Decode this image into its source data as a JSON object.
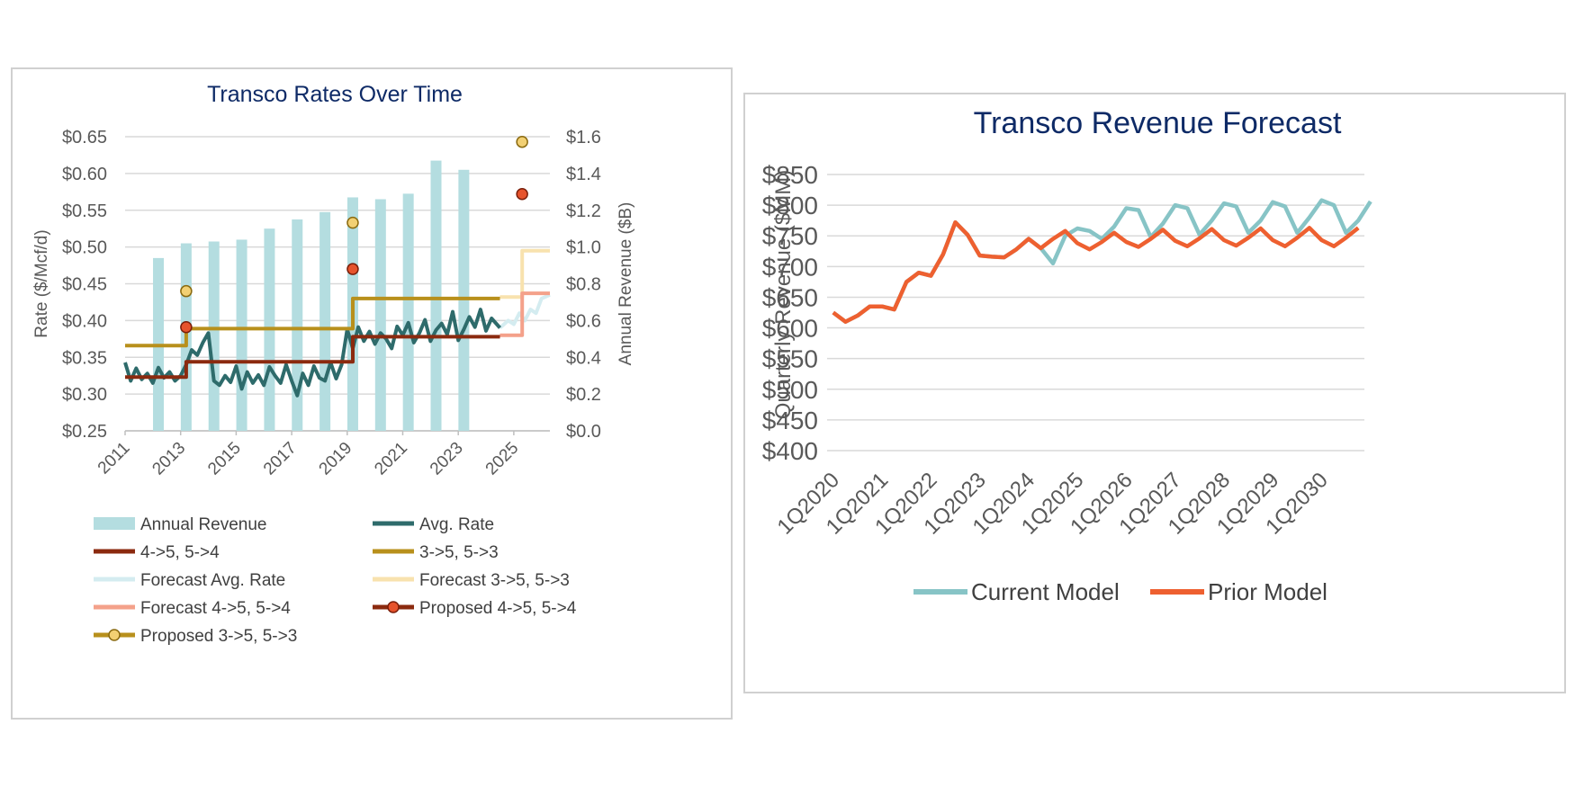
{
  "chart_data": [
    {
      "type": "bar+line",
      "title": "Transco Rates Over Time",
      "ylabel": "Rate ($/Mcf/d)",
      "y2label": "Annual Revenue ($B)",
      "ylim": [
        0.25,
        0.65
      ],
      "y2lim": [
        0,
        1.6
      ],
      "xlim": [
        2011,
        2026.3
      ],
      "yticks": [
        "$0.25",
        "$0.30",
        "$0.35",
        "$0.40",
        "$0.45",
        "$0.50",
        "$0.55",
        "$0.60",
        "$0.65"
      ],
      "y2ticks": [
        "$0.0",
        "$0.2",
        "$0.4",
        "$0.6",
        "$0.8",
        "$1.0",
        "$1.2",
        "$1.4",
        "$1.6"
      ],
      "xticks": [
        "2011",
        "2013",
        "2015",
        "2017",
        "2019",
        "2021",
        "2023",
        "2025"
      ],
      "grid": true,
      "legend_position": "bottom",
      "colors": {
        "annual_revenue": "#b4dde0",
        "avg_rate": "#2e6b6b",
        "r45": "#8b2a0f",
        "r35": "#b8901c",
        "forecast_avg": "#d4ecf0",
        "forecast_35": "#f8e2ae",
        "forecast_45": "#f4a18a",
        "proposed_45_fill": "#e6532c",
        "proposed_35_fill": "#f2d073"
      },
      "legend": [
        {
          "key": "annual_revenue",
          "label": "Annual Revenue",
          "kind": "bar"
        },
        {
          "key": "avg_rate",
          "label": "Avg. Rate",
          "kind": "line"
        },
        {
          "key": "r45",
          "label": "4->5, 5->4",
          "kind": "line"
        },
        {
          "key": "r35",
          "label": "3->5, 5->3",
          "kind": "line"
        },
        {
          "key": "forecast_avg",
          "label": "Forecast Avg. Rate",
          "kind": "line"
        },
        {
          "key": "forecast_35",
          "label": "Forecast 3->5, 5->3",
          "kind": "line"
        },
        {
          "key": "forecast_45",
          "label": "Forecast 4->5, 5->4",
          "kind": "line"
        },
        {
          "key": "proposed_45",
          "label": "Proposed 4->5, 5->4",
          "kind": "marker"
        },
        {
          "key": "proposed_35",
          "label": "Proposed 3->5, 5->3",
          "kind": "marker"
        }
      ],
      "annual_revenue": {
        "x": [
          2012.2,
          2013.2,
          2014.2,
          2015.2,
          2016.2,
          2017.2,
          2018.2,
          2019.2,
          2020.2,
          2021.2,
          2022.2,
          2023.2
        ],
        "values": [
          0.94,
          1.02,
          1.03,
          1.04,
          1.1,
          1.15,
          1.19,
          1.27,
          1.26,
          1.29,
          1.47,
          1.42
        ]
      },
      "r45": {
        "x": [
          2011,
          2013.2,
          2013.2,
          2019.2,
          2019.2,
          2024.5
        ],
        "y": [
          0.323,
          0.323,
          0.344,
          0.344,
          0.378,
          0.378
        ]
      },
      "r35": {
        "x": [
          2011,
          2013.2,
          2013.2,
          2019.2,
          2019.2,
          2024.5
        ],
        "y": [
          0.366,
          0.366,
          0.389,
          0.389,
          0.43,
          0.43
        ]
      },
      "forecast_45": {
        "x": [
          2024.5,
          2025.3,
          2025.3,
          2026.3
        ],
        "y": [
          0.38,
          0.38,
          0.437,
          0.437
        ]
      },
      "forecast_35": {
        "x": [
          2024.5,
          2025.3,
          2025.3,
          2026.3
        ],
        "y": [
          0.432,
          0.432,
          0.495,
          0.495
        ]
      },
      "forecast_avg": {
        "x": [
          2024.5,
          2024.8,
          2025.0,
          2025.2,
          2025.4,
          2025.6,
          2025.8,
          2026.0,
          2026.3
        ],
        "y": [
          0.39,
          0.4,
          0.395,
          0.41,
          0.4,
          0.415,
          0.41,
          0.43,
          0.435
        ]
      },
      "proposed_45": {
        "x": [
          2013.2,
          2019.2,
          2025.3
        ],
        "y": [
          0.391,
          0.47,
          0.572
        ]
      },
      "proposed_35": {
        "x": [
          2013.2,
          2019.2,
          2025.3
        ],
        "y": [
          0.44,
          0.533,
          0.643
        ]
      },
      "avg_rate": {
        "x": [
          2011.0,
          2011.2,
          2011.4,
          2011.6,
          2011.8,
          2012.0,
          2012.2,
          2012.4,
          2012.6,
          2012.8,
          2013.0,
          2013.2,
          2013.4,
          2013.6,
          2013.8,
          2014.0,
          2014.2,
          2014.4,
          2014.6,
          2014.8,
          2015.0,
          2015.2,
          2015.4,
          2015.6,
          2015.8,
          2016.0,
          2016.2,
          2016.4,
          2016.6,
          2016.8,
          2017.0,
          2017.2,
          2017.4,
          2017.6,
          2017.8,
          2018.0,
          2018.2,
          2018.4,
          2018.6,
          2018.8,
          2019.0,
          2019.2,
          2019.4,
          2019.6,
          2019.8,
          2020.0,
          2020.2,
          2020.4,
          2020.6,
          2020.8,
          2021.0,
          2021.2,
          2021.4,
          2021.6,
          2021.8,
          2022.0,
          2022.2,
          2022.4,
          2022.6,
          2022.8,
          2023.0,
          2023.2,
          2023.4,
          2023.6,
          2023.8,
          2024.0,
          2024.2,
          2024.5
        ],
        "y": [
          0.343,
          0.318,
          0.335,
          0.32,
          0.328,
          0.315,
          0.336,
          0.322,
          0.33,
          0.318,
          0.325,
          0.34,
          0.36,
          0.353,
          0.37,
          0.383,
          0.318,
          0.312,
          0.325,
          0.316,
          0.338,
          0.307,
          0.33,
          0.315,
          0.326,
          0.312,
          0.337,
          0.325,
          0.315,
          0.34,
          0.318,
          0.298,
          0.328,
          0.312,
          0.338,
          0.322,
          0.318,
          0.343,
          0.321,
          0.34,
          0.388,
          0.362,
          0.391,
          0.372,
          0.385,
          0.368,
          0.383,
          0.375,
          0.362,
          0.392,
          0.38,
          0.397,
          0.37,
          0.383,
          0.401,
          0.372,
          0.387,
          0.396,
          0.381,
          0.412,
          0.373,
          0.388,
          0.405,
          0.391,
          0.415,
          0.386,
          0.403,
          0.39
        ]
      }
    },
    {
      "type": "line",
      "title": "Transco Revenue Forecast",
      "ylabel": "Quarterly Revenue ($MM)",
      "ylim": [
        400,
        850
      ],
      "yticks": [
        "$400",
        "$450",
        "$500",
        "$550",
        "$600",
        "$650",
        "$700",
        "$750",
        "$800",
        "$850"
      ],
      "xticks": [
        "1Q2020",
        "1Q2021",
        "1Q2022",
        "1Q2023",
        "1Q2024",
        "1Q2025",
        "1Q2026",
        "1Q2027",
        "1Q2028",
        "1Q2029",
        "1Q2030"
      ],
      "grid": true,
      "legend_position": "bottom",
      "series": [
        {
          "name": "Current Model",
          "color": "#87c4c6",
          "values": [
            625,
            610,
            620,
            635,
            635,
            630,
            675,
            690,
            685,
            720,
            772,
            752,
            718,
            716,
            715,
            728,
            745,
            730,
            705,
            750,
            762,
            758,
            745,
            765,
            795,
            792,
            748,
            770,
            800,
            795,
            752,
            775,
            803,
            798,
            755,
            775,
            805,
            798,
            755,
            780,
            808,
            800,
            755,
            775,
            806
          ]
        },
        {
          "name": "Prior Model",
          "color": "#ee6030",
          "values": [
            625,
            610,
            620,
            635,
            635,
            630,
            675,
            690,
            685,
            720,
            772,
            752,
            718,
            716,
            715,
            728,
            745,
            730,
            745,
            758,
            738,
            728,
            740,
            755,
            740,
            732,
            745,
            760,
            742,
            733,
            746,
            761,
            743,
            734,
            747,
            762,
            743,
            733,
            747,
            763,
            743,
            733,
            747,
            763
          ]
        }
      ]
    }
  ]
}
